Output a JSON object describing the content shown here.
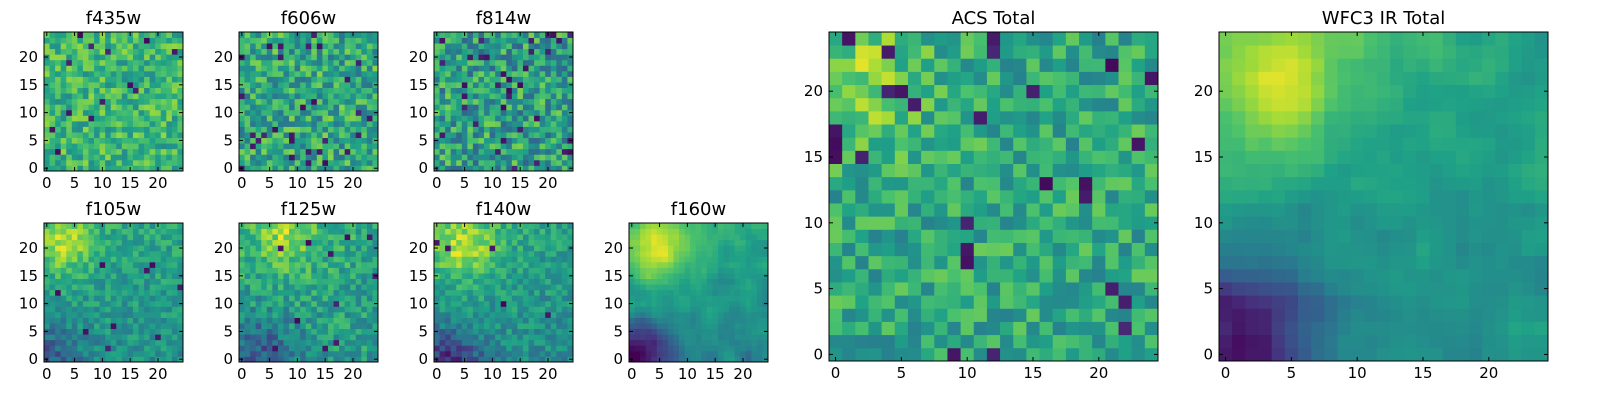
{
  "chart_data": {
    "type": "heatmap",
    "colormap": "viridis",
    "colormap_stops": [
      "#440154",
      "#46327e",
      "#365c8d",
      "#277f8e",
      "#1fa187",
      "#4ac16d",
      "#a0da39",
      "#fde725"
    ],
    "grid_size": 25,
    "panels": [
      {
        "title": "f435w",
        "xticks": [
          "0",
          "5",
          "10",
          "15",
          "20"
        ],
        "yticks": [
          "0",
          "5",
          "10",
          "15",
          "20"
        ],
        "pattern": {
          "base": 0.66,
          "grad_x": 0.0,
          "grad_y": 0.0,
          "noise": 0.18,
          "blob": null,
          "low_corner": null,
          "dark_rate": 0.03,
          "seed": 11
        }
      },
      {
        "title": "f606w",
        "xticks": [
          "0",
          "5",
          "10",
          "15",
          "20"
        ],
        "yticks": [
          "0",
          "5",
          "10",
          "15",
          "20"
        ],
        "pattern": {
          "base": 0.6,
          "grad_x": 0.0,
          "grad_y": 0.0,
          "noise": 0.22,
          "blob": null,
          "low_corner": null,
          "dark_rate": 0.04,
          "seed": 23
        }
      },
      {
        "title": "f814w",
        "xticks": [
          "0",
          "5",
          "10",
          "15",
          "20"
        ],
        "yticks": [
          "0",
          "5",
          "10",
          "15",
          "20"
        ],
        "pattern": {
          "base": 0.56,
          "grad_x": 0.0,
          "grad_y": 0.0,
          "noise": 0.24,
          "blob": null,
          "low_corner": null,
          "dark_rate": 0.06,
          "seed": 37
        }
      },
      {
        "title": "f105w",
        "xticks": [
          "0",
          "5",
          "10",
          "15",
          "20"
        ],
        "yticks": [
          "0",
          "5",
          "10",
          "15",
          "20"
        ],
        "pattern": {
          "base": 0.55,
          "grad_x": 0.0,
          "grad_y": 0.1,
          "noise": 0.12,
          "blob": [
            3,
            21,
            0.3
          ],
          "low_corner": [
            0,
            0,
            0.22
          ],
          "dark_rate": 0.01,
          "seed": 41
        }
      },
      {
        "title": "f125w",
        "xticks": [
          "0",
          "5",
          "10",
          "15",
          "20"
        ],
        "yticks": [
          "0",
          "5",
          "10",
          "15",
          "20"
        ],
        "pattern": {
          "base": 0.58,
          "grad_x": 0.0,
          "grad_y": 0.08,
          "noise": 0.15,
          "blob": [
            8,
            22,
            0.25
          ],
          "low_corner": [
            3,
            2,
            0.25
          ],
          "dark_rate": 0.02,
          "seed": 53
        }
      },
      {
        "title": "f140w",
        "xticks": [
          "0",
          "5",
          "10",
          "15",
          "20"
        ],
        "yticks": [
          "0",
          "5",
          "10",
          "15",
          "20"
        ],
        "pattern": {
          "base": 0.55,
          "grad_x": -0.05,
          "grad_y": 0.12,
          "noise": 0.12,
          "blob": [
            5,
            20,
            0.3
          ],
          "low_corner": [
            2,
            0,
            0.35
          ],
          "dark_rate": 0.01,
          "seed": 67
        }
      },
      {
        "title": "f160w",
        "xticks": [
          "0",
          "5",
          "10",
          "15",
          "20"
        ],
        "yticks": [
          "0",
          "5",
          "10",
          "15",
          "20"
        ],
        "pattern": {
          "base": 0.56,
          "grad_x": -0.1,
          "grad_y": 0.15,
          "noise": 0.08,
          "blob": [
            5,
            20,
            0.3
          ],
          "low_corner": [
            1,
            1,
            0.5
          ],
          "dark_rate": 0.0,
          "seed": 79
        }
      },
      {
        "title": "ACS Total",
        "xticks": [
          "0",
          "5",
          "10",
          "15",
          "20"
        ],
        "yticks": [
          "0",
          "5",
          "10",
          "15",
          "20"
        ],
        "pattern": {
          "base": 0.6,
          "grad_x": 0.0,
          "grad_y": 0.0,
          "noise": 0.17,
          "blob": [
            2,
            21,
            0.2
          ],
          "low_corner": null,
          "dark_rate": 0.05,
          "seed": 97
        }
      },
      {
        "title": "WFC3 IR Total",
        "xticks": [
          "0",
          "5",
          "10",
          "15",
          "20"
        ],
        "yticks": [
          "0",
          "5",
          "10",
          "15",
          "20"
        ],
        "pattern": {
          "base": 0.55,
          "grad_x": -0.05,
          "grad_y": 0.12,
          "noise": 0.07,
          "blob": [
            4,
            21,
            0.32
          ],
          "low_corner": [
            1,
            1,
            0.5
          ],
          "dark_rate": 0.0,
          "seed": 103
        }
      }
    ]
  }
}
